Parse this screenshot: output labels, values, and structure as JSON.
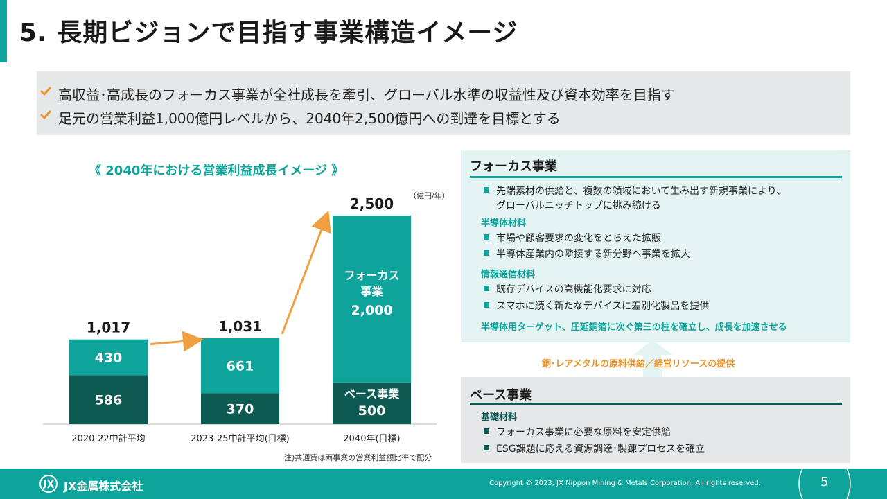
{
  "title": "5. 長期ビジョンで目指す事業構造イメージ",
  "summary": [
    "高収益･高成長のフォーカス事業が全社成長を牽引、グローバル水準の収益性及び資本効率を目指す",
    "足元の営業利益1,000億円レベルから、2040年2,500億円への到達を目標とする"
  ],
  "colors": {
    "focus": "#0ea49b",
    "base": "#0d5a53",
    "arrow": "#f0a040",
    "accent_orange": "#e8952b"
  },
  "chart_data": {
    "type": "bar",
    "title": "《 2040年における営業利益成長イメージ 》",
    "unit": "（億円/年）",
    "note": "注)共通費は両事業の営業利益額比率で配分",
    "categories": [
      "2020-22中計平均",
      "2023-25中計平均(目標)",
      "2040年(目標)"
    ],
    "series": [
      {
        "name": "ベース事業",
        "values": [
          586,
          370,
          500
        ]
      },
      {
        "name": "フォーカス事業",
        "values": [
          430,
          661,
          2000
        ]
      }
    ],
    "totals": [
      "1,017",
      "1,031",
      "2,500"
    ],
    "segment_labels": {
      "base": [
        "586",
        "370",
        "500"
      ],
      "focus": [
        "430",
        "661",
        "2,000"
      ]
    },
    "inbar_focus_name": [
      "フォーカス",
      "事業"
    ],
    "inbar_base_name": "ベース事業",
    "ylim": [
      0,
      2700
    ],
    "stacked": true,
    "grid": false
  },
  "focus_panel": {
    "heading": "フォーカス事業",
    "intro": [
      "先端素材の供給と、複数の領域において生み出す新規事業により、",
      "グローバルニッチトップに挑み続ける"
    ],
    "semiconductor": {
      "title": "半導体材料",
      "items": [
        "市場や顧客要求の変化をとらえた拡販",
        "半導体産業内の隣接する新分野へ事業を拡大"
      ]
    },
    "ict": {
      "title": "情報通信材料",
      "items": [
        "既存デバイスの高機能化要求に対応",
        "スマホに続く新たなデバイスに差別化製品を提供"
      ]
    },
    "target": "半導体用ターゲット、圧延銅箔に次ぐ第三の柱を確立し、成長を加速させる"
  },
  "supply_text": "銅･レアメタルの原料供給／経営リソースの提供",
  "base_panel": {
    "heading": "ベース事業",
    "basic": {
      "title": "基礎材料",
      "items": [
        "フォーカス事業に必要な原料を安定供給",
        "ESG課題に応える資源調達･製錬プロセスを確立"
      ]
    }
  },
  "footer": {
    "logo_text": "JX金属株式会社",
    "copyright": "Copyright © 2023, JX Nippon Mining & Metals Corporation, All rights reserved.",
    "page_number": "5"
  },
  "icons": {
    "check": "check-icon",
    "bullet": "square-bullet-icon",
    "up_arrow": "up-arrow-icon"
  }
}
